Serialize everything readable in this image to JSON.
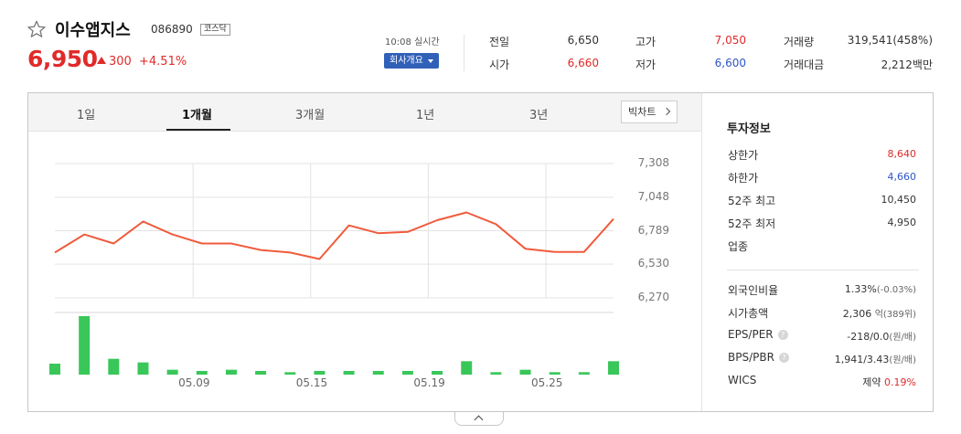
{
  "stock": {
    "name": "이수앱지스",
    "code": "086890",
    "market": "코스닥",
    "price": "6,950",
    "change": "300",
    "change_pct": "+4.51%",
    "realtime": "10:08 실시간",
    "company_btn": "회사개요"
  },
  "quotes": {
    "prev_label": "전일",
    "prev": "6,650",
    "high_label": "고가",
    "high": "7,050",
    "volume_label": "거래량",
    "volume": "319,541(458%)",
    "open_label": "시가",
    "open": "6,660",
    "low_label": "저가",
    "low": "6,600",
    "amount_label": "거래대금",
    "amount": "2,212백만"
  },
  "tabs": [
    "1일",
    "1개월",
    "3개월",
    "1년",
    "3년"
  ],
  "active_tab": "1개월",
  "big_chart_btn": "빅차트",
  "chart_data": {
    "type": "line",
    "title": "",
    "y_ticks": [
      "7,308",
      "7,048",
      "6,789",
      "6,530",
      "6,270"
    ],
    "y_tick_values": [
      7308,
      7048,
      6789,
      6530,
      6270
    ],
    "x_ticks": [
      "05.09",
      "05.15",
      "05.19",
      "05.25"
    ],
    "x_tick_index": [
      4.7,
      8.7,
      12.7,
      16.7
    ],
    "ylim": [
      6270,
      7308
    ],
    "price": [
      6620,
      6760,
      6690,
      6860,
      6760,
      6690,
      6690,
      6640,
      6620,
      6570,
      6830,
      6770,
      6780,
      6870,
      6930,
      6840,
      6650,
      6625,
      6625,
      6880
    ],
    "volume": [
      9,
      48,
      13,
      10,
      4,
      3,
      4,
      3,
      2,
      3,
      3,
      3,
      3,
      3,
      11,
      2,
      4,
      2,
      2,
      11
    ],
    "grid": true,
    "colors": {
      "line": "#f05b3c",
      "volume": "#39c75a",
      "grid": "#e3e3e3"
    }
  },
  "info": {
    "title": "투자정보",
    "rows1": [
      {
        "label": "상한가",
        "value": "8,640",
        "color": "#e12a2a"
      },
      {
        "label": "하한가",
        "value": "4,660",
        "color": "#2f56c9"
      },
      {
        "label": "52주 최고",
        "value": "10,450",
        "color": "#333333"
      },
      {
        "label": "52주 최저",
        "value": "4,950",
        "color": "#333333"
      },
      {
        "label": "업종",
        "value": "",
        "color": "#333333"
      }
    ],
    "foreign_label": "외국인비율",
    "foreign_value": "1.33%",
    "foreign_sub": "(-0.03%)",
    "mcap_label": "시가총액",
    "mcap_value": "2,306",
    "mcap_sub": "억(389위)",
    "eps_label": "EPS/PER",
    "eps_value": "-218/0.0",
    "eps_sub": "(원/배)",
    "bps_label": "BPS/PBR",
    "bps_value": "1,941/3.43",
    "bps_sub": "(원/배)",
    "wics_label": "WICS",
    "wics_value": "제약",
    "wics_sub": "0.19%",
    "help_mark": "?"
  }
}
